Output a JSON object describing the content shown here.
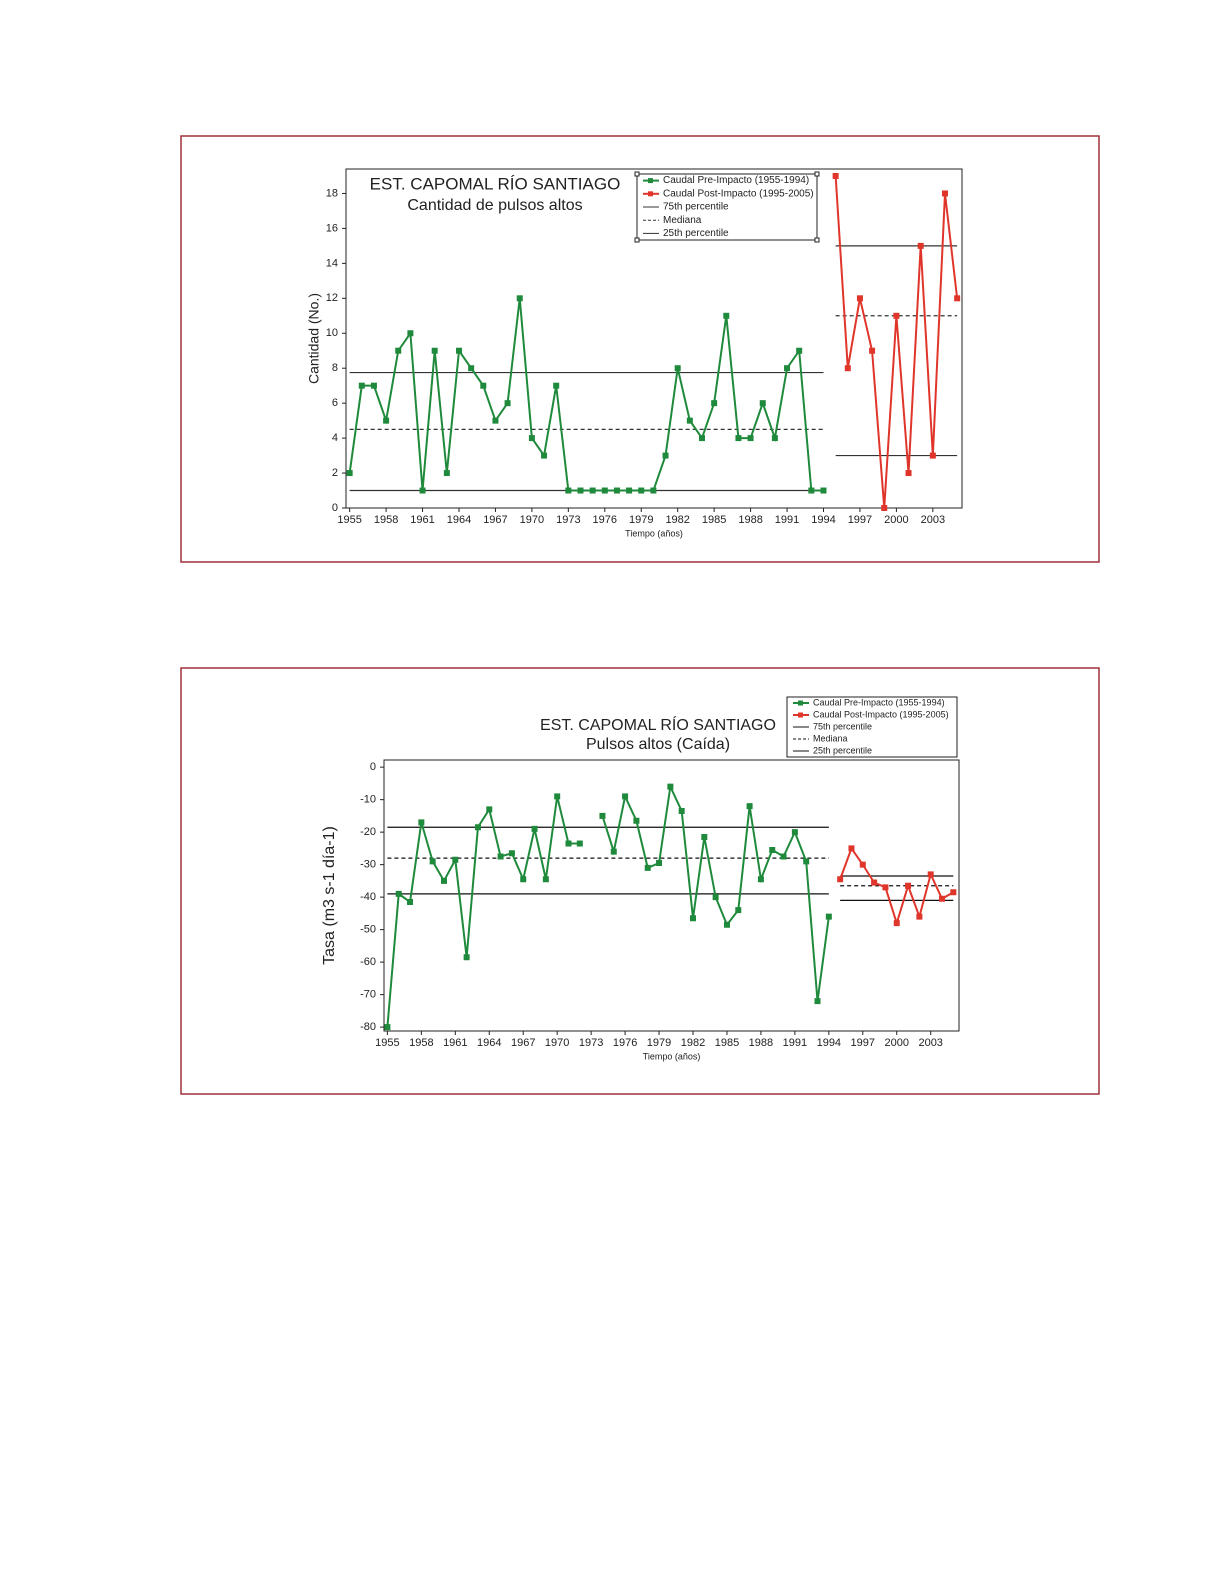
{
  "chart_data": [
    {
      "type": "line",
      "title": "EST. CAPOMAL RÍO SANTIAGO",
      "subtitle": "Cantidad de pulsos altos",
      "x_label": "Tiempo (años)",
      "y_label": "Cantidad (No.)",
      "xlim": [
        1954.7,
        2005.4
      ],
      "xticks": [
        1955,
        1958,
        1961,
        1964,
        1967,
        1970,
        1973,
        1976,
        1979,
        1982,
        1985,
        1988,
        1991,
        1994,
        1997,
        2000,
        2003
      ],
      "ylim": [
        0,
        19.4
      ],
      "yticks": [
        0,
        2,
        4,
        6,
        8,
        10,
        12,
        14,
        16,
        18
      ],
      "series": [
        {
          "name": "Caudal Pre-Impacto (1955-1994)",
          "color": "#1f8a3c",
          "x": [
            1955,
            1956,
            1957,
            1958,
            1959,
            1960,
            1961,
            1962,
            1963,
            1964,
            1965,
            1966,
            1967,
            1968,
            1969,
            1970,
            1971,
            1972,
            1973,
            1974,
            1975,
            1976,
            1977,
            1978,
            1979,
            1980,
            1981,
            1982,
            1983,
            1984,
            1985,
            1986,
            1987,
            1988,
            1989,
            1990,
            1991,
            1992,
            1993,
            1994
          ],
          "values": [
            2,
            7,
            7,
            5,
            9,
            10,
            1,
            9,
            2,
            9,
            8,
            7,
            5,
            6,
            12,
            4,
            3,
            7,
            1,
            1,
            1,
            1,
            1,
            1,
            1,
            1,
            3,
            8,
            5,
            4,
            6,
            11,
            4,
            4,
            6,
            4,
            8,
            9,
            1,
            1
          ]
        },
        {
          "name": "Caudal Post-Impacto (1995-2005)",
          "color": "#e0352b",
          "x": [
            1995,
            1996,
            1997,
            1998,
            1999,
            2000,
            2001,
            2002,
            2003,
            2004,
            2005
          ],
          "values": [
            19,
            8,
            12,
            9,
            0,
            11,
            2,
            15,
            3,
            18,
            12
          ]
        }
      ],
      "reference_lines": [
        {
          "name": "75th percentile",
          "color": "#333333",
          "dashed": false,
          "values": [
            7.75,
            15
          ]
        },
        {
          "name": "Mediana",
          "color": "#333333",
          "dashed": true,
          "values": [
            4.5,
            11
          ]
        },
        {
          "name": "25th percentile",
          "color": "#333333",
          "dashed": false,
          "values": [
            1,
            3
          ]
        }
      ]
    },
    {
      "type": "line",
      "title": "EST. CAPOMAL RÍO SANTIAGO",
      "subtitle": "Pulsos altos (Caída)",
      "x_label": "Tiempo (años)",
      "y_label": "Tasa (m3 s-1 día-1)",
      "xlim": [
        1954.7,
        2005.5
      ],
      "xticks": [
        1955,
        1958,
        1961,
        1964,
        1967,
        1970,
        1973,
        1976,
        1979,
        1982,
        1985,
        1988,
        1991,
        1994,
        1997,
        2000,
        2003
      ],
      "ylim": [
        -81.2,
        2.2
      ],
      "yticks": [
        0,
        -10,
        -20,
        -30,
        -40,
        -50,
        -60,
        -70,
        -80
      ],
      "series": [
        {
          "name": "Caudal Pre-Impacto (1955-1994)",
          "color": "#1f8a3c",
          "x": [
            1955,
            1956,
            1957,
            1958,
            1959,
            1960,
            1961,
            1962,
            1963,
            1964,
            1965,
            1966,
            1967,
            1968,
            1969,
            1970,
            1971,
            1972,
            1973,
            1974,
            1975,
            1976,
            1977,
            1978,
            1979,
            1980,
            1981,
            1982,
            1983,
            1984,
            1985,
            1986,
            1987,
            1988,
            1989,
            1990,
            1991,
            1992,
            1993,
            1994
          ],
          "values": [
            -80,
            -39,
            -41.5,
            -17,
            -29,
            -35,
            -28.5,
            -58.5,
            -18.5,
            -13,
            -27.5,
            -26.5,
            -34.5,
            -19,
            -34.5,
            -9,
            -23.5,
            -23.5,
            null,
            -15,
            -26,
            -9,
            -16.5,
            -31,
            -29.5,
            -6,
            -13.5,
            -46.5,
            -21.5,
            -40,
            -48.5,
            -44,
            -12,
            -34.5,
            -25.5,
            -27.5,
            -20,
            -29,
            -72,
            -46
          ]
        },
        {
          "name": "Caudal Post-Impacto (1995-2005)",
          "color": "#e0352b",
          "x": [
            1995,
            1996,
            1997,
            1998,
            1999,
            2000,
            2001,
            2002,
            2003,
            2004,
            2005
          ],
          "values": [
            -34.5,
            -25,
            -30,
            -35.5,
            -37,
            -48,
            -36.5,
            -46,
            -33,
            -40.5,
            -38.5
          ]
        }
      ],
      "reference_lines": [
        {
          "name": "75th percentile",
          "color": "#111111",
          "dashed": false,
          "values": [
            -18.5,
            -33.5
          ]
        },
        {
          "name": "Mediana",
          "color": "#111111",
          "dashed": true,
          "values": [
            -28,
            -36.5
          ]
        },
        {
          "name": "25th percentile",
          "color": "#111111",
          "dashed": false,
          "values": [
            -39,
            -41
          ]
        }
      ]
    }
  ]
}
